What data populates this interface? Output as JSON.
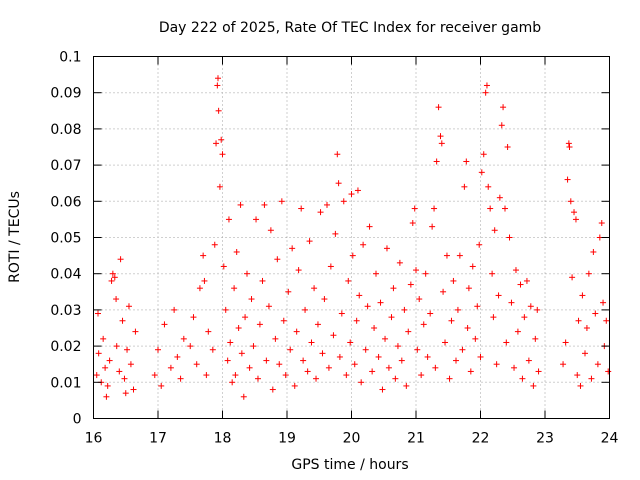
{
  "chart_data": {
    "type": "scatter",
    "title": "Day 222 of 2025, Rate Of TEC Index for receiver gamb",
    "xlabel": "GPS time / hours",
    "ylabel": "ROTI / TECUs",
    "xlim": [
      16,
      24
    ],
    "ylim": [
      0,
      0.1
    ],
    "xticks": [
      16,
      17,
      18,
      19,
      20,
      21,
      22,
      23,
      24
    ],
    "xtick_labels": [
      "16",
      "17",
      "18",
      "19",
      "20",
      "21",
      "22",
      "23",
      "24"
    ],
    "yticks": [
      0,
      0.01,
      0.02,
      0.03,
      0.04,
      0.05,
      0.06,
      0.07,
      0.08,
      0.09,
      0.1
    ],
    "ytick_labels": [
      "0",
      "0.01",
      "0.02",
      "0.03",
      "0.04",
      "0.05",
      "0.06",
      "0.07",
      "0.08",
      "0.09",
      "0.1"
    ],
    "grid": true,
    "marker": "+",
    "color": "#ff0000",
    "series": [
      {
        "name": "ROTI",
        "points": [
          [
            16.05,
            0.012
          ],
          [
            16.08,
            0.018
          ],
          [
            16.12,
            0.01
          ],
          [
            16.15,
            0.022
          ],
          [
            16.18,
            0.014
          ],
          [
            16.22,
            0.009
          ],
          [
            16.25,
            0.016
          ],
          [
            16.28,
            0.038
          ],
          [
            16.3,
            0.04
          ],
          [
            16.33,
            0.039
          ],
          [
            16.36,
            0.02
          ],
          [
            16.4,
            0.013
          ],
          [
            16.42,
            0.044
          ],
          [
            16.45,
            0.027
          ],
          [
            16.48,
            0.011
          ],
          [
            16.52,
            0.019
          ],
          [
            16.55,
            0.031
          ],
          [
            16.58,
            0.015
          ],
          [
            16.62,
            0.008
          ],
          [
            16.65,
            0.024
          ],
          [
            16.07,
            0.029
          ],
          [
            16.2,
            0.006
          ],
          [
            16.35,
            0.033
          ],
          [
            16.5,
            0.007
          ],
          [
            16.95,
            0.012
          ],
          [
            17.0,
            0.019
          ],
          [
            17.05,
            0.009
          ],
          [
            17.1,
            0.026
          ],
          [
            17.2,
            0.014
          ],
          [
            17.25,
            0.03
          ],
          [
            17.3,
            0.017
          ],
          [
            17.35,
            0.011
          ],
          [
            17.4,
            0.022
          ],
          [
            17.5,
            0.02
          ],
          [
            17.55,
            0.028
          ],
          [
            17.6,
            0.015
          ],
          [
            17.65,
            0.036
          ],
          [
            17.7,
            0.045
          ],
          [
            17.72,
            0.038
          ],
          [
            17.75,
            0.012
          ],
          [
            17.78,
            0.024
          ],
          [
            17.85,
            0.019
          ],
          [
            17.88,
            0.048
          ],
          [
            17.9,
            0.076
          ],
          [
            17.92,
            0.092
          ],
          [
            17.93,
            0.094
          ],
          [
            17.94,
            0.085
          ],
          [
            17.96,
            0.064
          ],
          [
            17.98,
            0.077
          ],
          [
            18.0,
            0.073
          ],
          [
            18.02,
            0.042
          ],
          [
            18.05,
            0.03
          ],
          [
            18.08,
            0.016
          ],
          [
            18.1,
            0.055
          ],
          [
            18.12,
            0.021
          ],
          [
            18.15,
            0.01
          ],
          [
            18.18,
            0.036
          ],
          [
            18.2,
            0.012
          ],
          [
            18.22,
            0.046
          ],
          [
            18.25,
            0.025
          ],
          [
            18.28,
            0.059
          ],
          [
            18.3,
            0.018
          ],
          [
            18.33,
            0.006
          ],
          [
            18.35,
            0.028
          ],
          [
            18.38,
            0.04
          ],
          [
            18.42,
            0.014
          ],
          [
            18.45,
            0.033
          ],
          [
            18.48,
            0.02
          ],
          [
            18.52,
            0.055
          ],
          [
            18.55,
            0.011
          ],
          [
            18.58,
            0.026
          ],
          [
            18.62,
            0.038
          ],
          [
            18.65,
            0.059
          ],
          [
            18.68,
            0.016
          ],
          [
            18.72,
            0.031
          ],
          [
            18.75,
            0.052
          ],
          [
            18.78,
            0.008
          ],
          [
            18.82,
            0.022
          ],
          [
            18.85,
            0.044
          ],
          [
            18.88,
            0.015
          ],
          [
            18.92,
            0.06
          ],
          [
            18.95,
            0.027
          ],
          [
            18.98,
            0.012
          ],
          [
            19.02,
            0.035
          ],
          [
            19.05,
            0.019
          ],
          [
            19.08,
            0.047
          ],
          [
            19.12,
            0.009
          ],
          [
            19.15,
            0.024
          ],
          [
            19.18,
            0.041
          ],
          [
            19.22,
            0.058
          ],
          [
            19.25,
            0.016
          ],
          [
            19.28,
            0.03
          ],
          [
            19.32,
            0.013
          ],
          [
            19.35,
            0.049
          ],
          [
            19.38,
            0.021
          ],
          [
            19.42,
            0.036
          ],
          [
            19.45,
            0.011
          ],
          [
            19.48,
            0.026
          ],
          [
            19.52,
            0.057
          ],
          [
            19.55,
            0.018
          ],
          [
            19.58,
            0.033
          ],
          [
            19.62,
            0.059
          ],
          [
            19.65,
            0.014
          ],
          [
            19.68,
            0.042
          ],
          [
            19.72,
            0.023
          ],
          [
            19.75,
            0.051
          ],
          [
            19.78,
            0.073
          ],
          [
            19.8,
            0.065
          ],
          [
            19.82,
            0.017
          ],
          [
            19.85,
            0.029
          ],
          [
            19.88,
            0.06
          ],
          [
            19.92,
            0.012
          ],
          [
            19.95,
            0.038
          ],
          [
            19.98,
            0.021
          ],
          [
            20.0,
            0.062
          ],
          [
            20.02,
            0.045
          ],
          [
            20.05,
            0.015
          ],
          [
            20.08,
            0.027
          ],
          [
            20.1,
            0.063
          ],
          [
            20.12,
            0.034
          ],
          [
            20.15,
            0.01
          ],
          [
            20.18,
            0.048
          ],
          [
            20.22,
            0.019
          ],
          [
            20.25,
            0.031
          ],
          [
            20.28,
            0.053
          ],
          [
            20.32,
            0.013
          ],
          [
            20.35,
            0.025
          ],
          [
            20.38,
            0.04
          ],
          [
            20.42,
            0.017
          ],
          [
            20.45,
            0.032
          ],
          [
            20.48,
            0.008
          ],
          [
            20.52,
            0.022
          ],
          [
            20.55,
            0.047
          ],
          [
            20.58,
            0.014
          ],
          [
            20.62,
            0.028
          ],
          [
            20.65,
            0.036
          ],
          [
            20.68,
            0.011
          ],
          [
            20.72,
            0.02
          ],
          [
            20.75,
            0.043
          ],
          [
            20.78,
            0.016
          ],
          [
            20.82,
            0.03
          ],
          [
            20.85,
            0.009
          ],
          [
            20.88,
            0.024
          ],
          [
            20.92,
            0.037
          ],
          [
            20.95,
            0.054
          ],
          [
            20.98,
            0.058
          ],
          [
            21.0,
            0.041
          ],
          [
            21.02,
            0.019
          ],
          [
            21.05,
            0.033
          ],
          [
            21.08,
            0.012
          ],
          [
            21.12,
            0.026
          ],
          [
            21.15,
            0.04
          ],
          [
            21.18,
            0.017
          ],
          [
            21.22,
            0.029
          ],
          [
            21.25,
            0.053
          ],
          [
            21.28,
            0.058
          ],
          [
            21.3,
            0.014
          ],
          [
            21.32,
            0.071
          ],
          [
            21.35,
            0.086
          ],
          [
            21.38,
            0.078
          ],
          [
            21.4,
            0.076
          ],
          [
            21.42,
            0.035
          ],
          [
            21.45,
            0.021
          ],
          [
            21.48,
            0.045
          ],
          [
            21.52,
            0.011
          ],
          [
            21.55,
            0.027
          ],
          [
            21.58,
            0.038
          ],
          [
            21.62,
            0.016
          ],
          [
            21.65,
            0.03
          ],
          [
            21.68,
            0.045
          ],
          [
            21.72,
            0.019
          ],
          [
            21.75,
            0.064
          ],
          [
            21.78,
            0.071
          ],
          [
            21.8,
            0.025
          ],
          [
            21.82,
            0.036
          ],
          [
            21.85,
            0.013
          ],
          [
            21.88,
            0.042
          ],
          [
            21.92,
            0.022
          ],
          [
            21.95,
            0.031
          ],
          [
            21.98,
            0.048
          ],
          [
            22.0,
            0.017
          ],
          [
            22.02,
            0.068
          ],
          [
            22.05,
            0.073
          ],
          [
            22.08,
            0.09
          ],
          [
            22.1,
            0.092
          ],
          [
            22.12,
            0.064
          ],
          [
            22.15,
            0.058
          ],
          [
            22.18,
            0.04
          ],
          [
            22.2,
            0.028
          ],
          [
            22.22,
            0.052
          ],
          [
            22.25,
            0.015
          ],
          [
            22.28,
            0.034
          ],
          [
            22.3,
            0.061
          ],
          [
            22.33,
            0.081
          ],
          [
            22.35,
            0.086
          ],
          [
            22.38,
            0.058
          ],
          [
            22.4,
            0.021
          ],
          [
            22.42,
            0.075
          ],
          [
            22.45,
            0.05
          ],
          [
            22.48,
            0.032
          ],
          [
            22.52,
            0.014
          ],
          [
            22.55,
            0.041
          ],
          [
            22.58,
            0.024
          ],
          [
            22.62,
            0.037
          ],
          [
            22.65,
            0.011
          ],
          [
            22.68,
            0.028
          ],
          [
            22.72,
            0.038
          ],
          [
            22.75,
            0.016
          ],
          [
            22.78,
            0.031
          ],
          [
            22.82,
            0.009
          ],
          [
            22.85,
            0.022
          ],
          [
            22.88,
            0.03
          ],
          [
            22.9,
            0.013
          ],
          [
            23.28,
            0.015
          ],
          [
            23.32,
            0.021
          ],
          [
            23.35,
            0.066
          ],
          [
            23.37,
            0.076
          ],
          [
            23.38,
            0.075
          ],
          [
            23.4,
            0.06
          ],
          [
            23.42,
            0.039
          ],
          [
            23.45,
            0.057
          ],
          [
            23.48,
            0.055
          ],
          [
            23.5,
            0.012
          ],
          [
            23.52,
            0.027
          ],
          [
            23.55,
            0.009
          ],
          [
            23.58,
            0.034
          ],
          [
            23.62,
            0.018
          ],
          [
            23.65,
            0.025
          ],
          [
            23.68,
            0.04
          ],
          [
            23.72,
            0.011
          ],
          [
            23.75,
            0.046
          ],
          [
            23.78,
            0.029
          ],
          [
            23.82,
            0.015
          ],
          [
            23.85,
            0.05
          ],
          [
            23.88,
            0.054
          ],
          [
            23.9,
            0.032
          ],
          [
            23.92,
            0.02
          ],
          [
            23.95,
            0.027
          ],
          [
            23.98,
            0.013
          ]
        ]
      }
    ]
  }
}
